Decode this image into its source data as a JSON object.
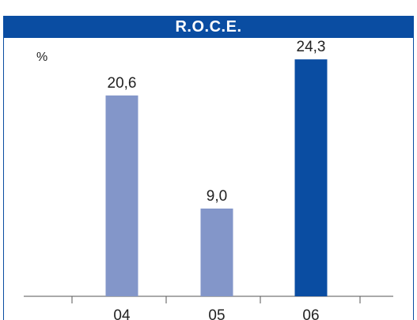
{
  "chart_data": {
    "type": "bar",
    "title": "R.O.C.E.",
    "unit": "%",
    "categories": [
      "04",
      "05",
      "06"
    ],
    "values": [
      20.6,
      9.0,
      24.3
    ],
    "value_labels": [
      "20,6",
      "9,0",
      "24,3"
    ],
    "ylim": [
      0,
      26.5
    ],
    "grid": false,
    "colors": {
      "bar_default": "#8396c9",
      "bar_highlight": "#0a4da2",
      "title_background": "#0a4da2",
      "title_text": "#ffffff"
    },
    "highlight_index": 2
  }
}
